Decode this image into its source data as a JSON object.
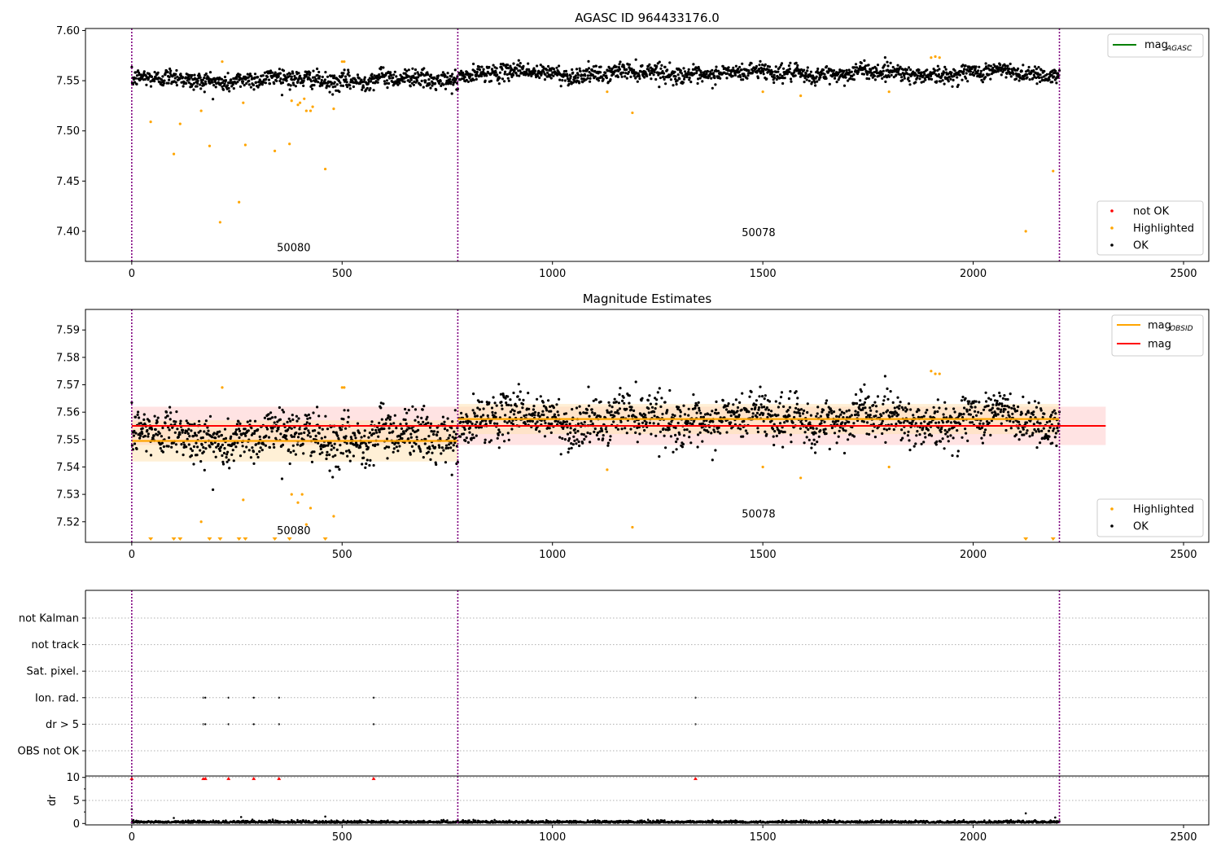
{
  "figure": {
    "panel1_title": "AGASC ID 964433176.0",
    "panel2_title": "Magnitude Estimates"
  },
  "colors": {
    "ok": "#000000",
    "highlighted": "#ffa500",
    "not_ok": "#ff0000",
    "mag_agasc_line": "#008000",
    "mag_obsid_line": "#ffa500",
    "mag_line": "#ff0000",
    "obs_boundary": "#800080",
    "mag_band": "#ffcccc",
    "obsid_band": "#ffe4b5"
  },
  "chart_data": [
    {
      "type": "scatter",
      "title": "AGASC ID 964433176.0",
      "xlim": [
        -110,
        2560
      ],
      "ylim": [
        7.37,
        7.602
      ],
      "xticks": [
        0,
        500,
        1000,
        1500,
        2000,
        2500
      ],
      "xtick_labels": [
        "0",
        "500",
        "1000",
        "1500",
        "2000",
        "2500"
      ],
      "yticks": [
        7.4,
        7.45,
        7.5,
        7.55,
        7.6
      ],
      "ytick_labels": [
        "7.40",
        "7.45",
        "7.50",
        "7.55",
        "7.60"
      ],
      "obs_boundaries": [
        0,
        775,
        2205
      ],
      "obs_labels": [
        {
          "text": "50080",
          "x": 385,
          "y": 7.38
        },
        {
          "text": "50078",
          "x": 1490,
          "y": 7.395
        }
      ],
      "legend_top": {
        "placement": "top-right",
        "entries": [
          {
            "label": "mag",
            "sub": "AGASC",
            "color": "#008000"
          }
        ]
      },
      "legend_bottom": {
        "placement": "bottom-right",
        "entries": [
          {
            "label": "not OK",
            "color": "#ff0000"
          },
          {
            "label": "Highlighted",
            "color": "#ffa500"
          },
          {
            "label": "OK",
            "color": "#000000"
          }
        ]
      },
      "ok_segments": [
        {
          "x0": 0,
          "x1": 775,
          "count": 780,
          "center": 7.551,
          "noise": 0.006
        },
        {
          "x0": 778,
          "x1": 2205,
          "count": 1420,
          "center": 7.5575,
          "noise": 0.0055
        }
      ],
      "highlighted_points": [
        [
          45,
          7.509
        ],
        [
          100,
          7.477
        ],
        [
          115,
          7.507
        ],
        [
          165,
          7.52
        ],
        [
          185,
          7.485
        ],
        [
          210,
          7.409
        ],
        [
          215,
          7.569
        ],
        [
          255,
          7.429
        ],
        [
          265,
          7.528
        ],
        [
          270,
          7.486
        ],
        [
          340,
          7.48
        ],
        [
          375,
          7.487
        ],
        [
          380,
          7.53
        ],
        [
          395,
          7.526
        ],
        [
          400,
          7.528
        ],
        [
          410,
          7.532
        ],
        [
          415,
          7.52
        ],
        [
          425,
          7.52
        ],
        [
          430,
          7.524
        ],
        [
          460,
          7.462
        ],
        [
          480,
          7.522
        ],
        [
          500,
          7.569
        ],
        [
          505,
          7.569
        ],
        [
          1130,
          7.539
        ],
        [
          1190,
          7.518
        ],
        [
          1500,
          7.539
        ],
        [
          1590,
          7.535
        ],
        [
          1800,
          7.539
        ],
        [
          1900,
          7.573
        ],
        [
          1910,
          7.574
        ],
        [
          1920,
          7.573
        ],
        [
          2125,
          7.4
        ],
        [
          2190,
          7.46
        ]
      ]
    },
    {
      "type": "scatter",
      "title": "Magnitude Estimates",
      "xlim": [
        -110,
        2560
      ],
      "ylim": [
        7.5125,
        7.5975
      ],
      "xticks": [
        0,
        500,
        1000,
        1500,
        2000,
        2500
      ],
      "xtick_labels": [
        "0",
        "500",
        "1000",
        "1500",
        "2000",
        "2500"
      ],
      "yticks": [
        7.52,
        7.53,
        7.54,
        7.55,
        7.56,
        7.57,
        7.58,
        7.59
      ],
      "ytick_labels": [
        "7.52",
        "7.53",
        "7.54",
        "7.55",
        "7.56",
        "7.57",
        "7.58",
        "7.59"
      ],
      "obs_boundaries": [
        0,
        775,
        2205
      ],
      "obs_labels": [
        {
          "text": "50080",
          "x": 385,
          "y": 7.5155
        },
        {
          "text": "50078",
          "x": 1490,
          "y": 7.5215
        }
      ],
      "mag": {
        "value": 7.555,
        "band": [
          7.548,
          7.562
        ],
        "x0": 0,
        "x1": 2315
      },
      "mag_obsid": [
        {
          "x0": 0,
          "x1": 775,
          "value": 7.5495,
          "band": [
            7.542,
            7.557
          ]
        },
        {
          "x0": 775,
          "x1": 2205,
          "value": 7.5575,
          "band": [
            7.552,
            7.563
          ]
        }
      ],
      "legend_top": {
        "placement": "top-right",
        "entries": [
          {
            "label": "mag",
            "sub": "OBSID",
            "color": "#ffa500"
          },
          {
            "label": "mag",
            "sub": "",
            "color": "#ff0000"
          }
        ]
      },
      "legend_bottom": {
        "placement": "bottom-right",
        "entries": [
          {
            "label": "Highlighted",
            "color": "#ffa500"
          },
          {
            "label": "OK",
            "color": "#000000"
          }
        ]
      },
      "highlighted_points": [
        [
          165,
          7.52
        ],
        [
          215,
          7.569
        ],
        [
          265,
          7.528
        ],
        [
          380,
          7.53
        ],
        [
          395,
          7.527
        ],
        [
          405,
          7.53
        ],
        [
          415,
          7.519
        ],
        [
          425,
          7.525
        ],
        [
          480,
          7.522
        ],
        [
          500,
          7.569
        ],
        [
          505,
          7.569
        ],
        [
          1130,
          7.539
        ],
        [
          1190,
          7.518
        ],
        [
          1500,
          7.54
        ],
        [
          1590,
          7.536
        ],
        [
          1800,
          7.54
        ],
        [
          1900,
          7.575
        ],
        [
          1910,
          7.574
        ],
        [
          1920,
          7.574
        ]
      ],
      "clipped_low_markers": [
        45,
        100,
        115,
        185,
        210,
        255,
        270,
        340,
        375,
        460,
        2125,
        2190
      ]
    },
    {
      "type": "scatter",
      "title": "",
      "xlim": [
        -110,
        2560
      ],
      "categories": [
        "not Kalman",
        "not track",
        "Sat. pixel.",
        "Ion. rad.",
        "dr > 5",
        "OBS not OK"
      ],
      "obs_boundaries": [
        0,
        775,
        2205
      ],
      "flag_points": {
        "Ion. rad.": [
          170,
          175,
          230,
          290,
          350,
          575,
          1340
        ],
        "dr > 5": [
          170,
          175,
          230,
          290,
          350,
          575,
          1340
        ]
      }
    },
    {
      "type": "scatter",
      "title": "",
      "ylabel": "dr",
      "xlim": [
        -110,
        2560
      ],
      "ylim": [
        -0.3,
        10.3
      ],
      "xticks": [
        0,
        500,
        1000,
        1500,
        2000,
        2500
      ],
      "xtick_labels": [
        "0",
        "500",
        "1000",
        "1500",
        "2000",
        "2500"
      ],
      "yticks": [
        0,
        5,
        10
      ],
      "ytick_labels": [
        "0",
        "5",
        "10"
      ],
      "obs_boundaries": [
        0,
        775,
        2205
      ],
      "clipped_high_markers": [
        0,
        170,
        175,
        230,
        290,
        350,
        575,
        1340
      ],
      "outliers": [
        [
          0,
          3.1
        ],
        [
          100,
          1.2
        ],
        [
          260,
          1.4
        ],
        [
          460,
          1.5
        ],
        [
          2125,
          2.2
        ],
        [
          2195,
          1.3
        ]
      ]
    }
  ]
}
